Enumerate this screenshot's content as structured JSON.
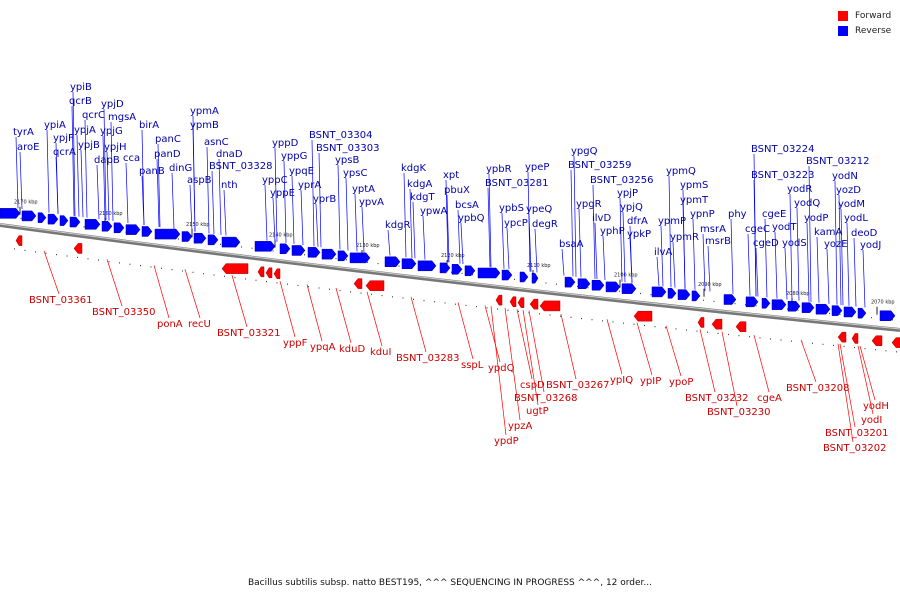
{
  "legend": {
    "forward_label": "Forward",
    "reverse_label": "Reverse",
    "forward_color": "#ff0000",
    "reverse_color": "#0000ff"
  },
  "caption": "Bacillus subtilis subsp. natto BEST195, ^^^ SEQUENCING IN PROGRESS ^^^, 12 order...",
  "ticks": [
    "2170 kbp",
    "2160 kbp",
    "2150 kbp",
    "2140 kbp",
    "2130 kbp",
    "2120 kbp",
    "2110 kbp",
    "2100 kbp",
    "2090 kbp",
    "2080 kbp",
    "2070 kbp"
  ],
  "reverse_genes": [
    "ypiB",
    "qcrB",
    "qcrC",
    "ypiA",
    "ypjD",
    "mgsA",
    "tyrA",
    "ypjA",
    "ypjF",
    "ypjG",
    "aroE",
    "qcrA",
    "birA",
    "ypjH",
    "ypjB",
    "dapB",
    "cca",
    "panC",
    "panD",
    "panB",
    "dinG",
    "ypmA",
    "ypmB",
    "asnC",
    "dnaD",
    "BSNT_03328",
    "nth",
    "aspB",
    "yppD",
    "yppG",
    "yppC",
    "ypqE",
    "yppE",
    "BSNT_03304",
    "BSNT_03303",
    "ypsB",
    "ypsC",
    "yprA",
    "yprB",
    "yptA",
    "ypvA",
    "kdgK",
    "kdgA",
    "xpt",
    "kdgT",
    "pbuX",
    "bcsA",
    "ypwA",
    "kdgR",
    "ypbQ",
    "ypbR",
    "BSNT_03281",
    "ypbS",
    "ypeP",
    "ypeQ",
    "ypcP",
    "degR",
    "ypgQ",
    "BSNT_03259",
    "BSNT_03256",
    "ypgR",
    "ypjP",
    "ilvD",
    "ypjQ",
    "yphP",
    "dfrA",
    "ypkP",
    "bsaA",
    "ypmQ",
    "ypmS",
    "ypmT",
    "ypmP",
    "ypnP",
    "ypmR",
    "msrA",
    "ilvA",
    "msrB",
    "phy",
    "BSNT_03224",
    "BSNT_03223",
    "BSNT_03212",
    "yodN",
    "yodR",
    "yozD",
    "cgeE",
    "yodQ",
    "yodM",
    "yodP",
    "cgeC",
    "yodT",
    "kamA",
    "yodL",
    "cgeD",
    "yodS",
    "deoD",
    "yozE",
    "yodJ"
  ],
  "forward_genes": [
    "BSNT_03361",
    "BSNT_03350",
    "ponA",
    "recU",
    "BSNT_03321",
    "yppF",
    "ypqA",
    "kduD",
    "kduI",
    "BSNT_03283",
    "sspL",
    "ypdQ",
    "cspD",
    "BSNT_03267",
    "BSNT_03268",
    "ugtP",
    "ypzA",
    "ypdP",
    "ypIQ",
    "ypIP",
    "ypoP",
    "BSNT_03232",
    "BSNT_03230",
    "cgeA",
    "BSNT_03208",
    "yodH",
    "yodI",
    "BSNT_03201",
    "BSNT_03202"
  ]
}
